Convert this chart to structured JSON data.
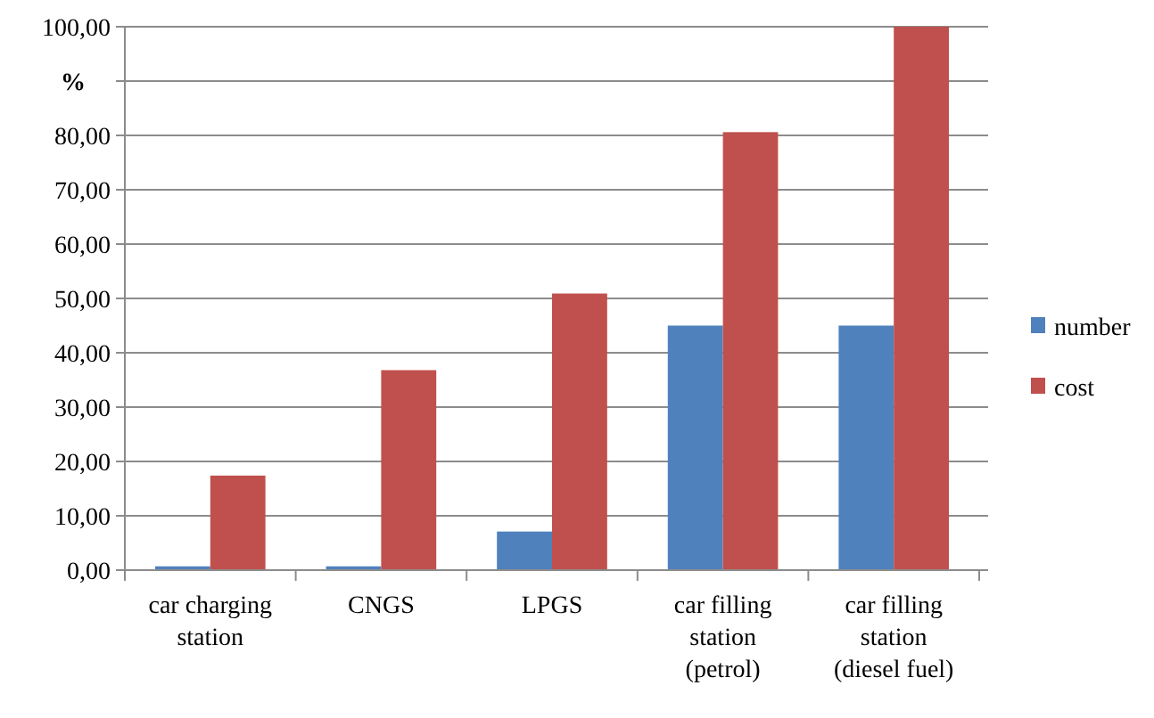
{
  "chart_data": {
    "type": "bar",
    "ylabel": "%",
    "categories": [
      "car charging station",
      "CNGS",
      "LPGS",
      "car filling station (petrol)",
      "car filling station (diesel fuel)"
    ],
    "series": [
      {
        "name": "number",
        "color": "#4f81bd",
        "values": [
          0.7,
          0.7,
          7.1,
          45.0,
          45.0
        ]
      },
      {
        "name": "cost",
        "color": "#c0504d",
        "values": [
          17.4,
          36.8,
          50.9,
          80.6,
          100.0
        ]
      }
    ],
    "ylim": [
      0,
      100
    ],
    "yticks": [
      {
        "value": 0,
        "label": "0,00"
      },
      {
        "value": 10,
        "label": "10,00"
      },
      {
        "value": 20,
        "label": "20,00"
      },
      {
        "value": 30,
        "label": "30,00"
      },
      {
        "value": 40,
        "label": "40,00"
      },
      {
        "value": 50,
        "label": "50,00"
      },
      {
        "value": 60,
        "label": "60,00"
      },
      {
        "value": 70,
        "label": "70,00"
      },
      {
        "value": 80,
        "label": "80,00"
      },
      {
        "value": 90,
        "label": null
      },
      {
        "value": 100,
        "label": "100,00"
      }
    ],
    "grid": "y",
    "legend": "right"
  }
}
